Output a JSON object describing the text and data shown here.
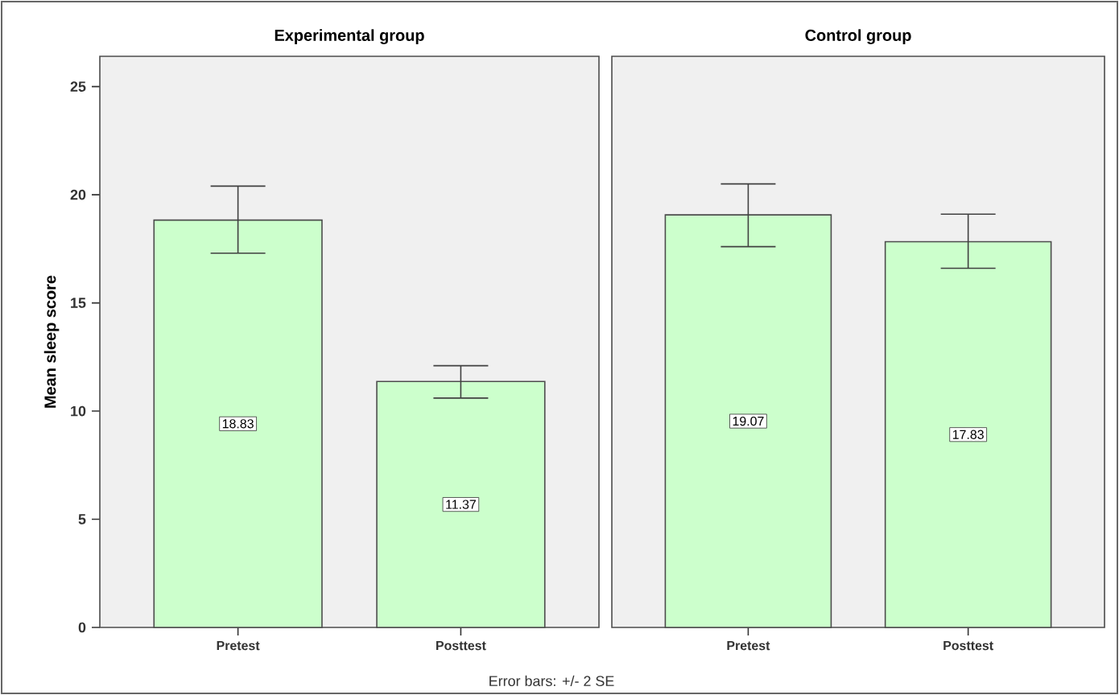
{
  "chart_data": [
    {
      "type": "bar",
      "title": "Experimental group",
      "ylabel": "Mean sleep score",
      "categories": [
        "Pretest",
        "Posttest"
      ],
      "values": [
        18.83,
        11.37
      ],
      "errors": [
        [
          17.3,
          20.4
        ],
        [
          10.6,
          12.1
        ]
      ],
      "color": "#ccffcc",
      "ylim": [
        0,
        26.4
      ],
      "yticks": [
        0,
        5,
        10,
        15,
        20,
        25
      ],
      "data_labels": true,
      "annotations": [
        "Error bars: +/- 2 SE"
      ]
    },
    {
      "type": "bar",
      "title": "Control group",
      "categories": [
        "Pretest",
        "Posttest"
      ],
      "values": [
        19.07,
        17.83
      ],
      "errors": [
        [
          17.6,
          20.5
        ],
        [
          16.6,
          19.1
        ]
      ],
      "color": "#ccffcc",
      "ylim": [
        0,
        26.4
      ],
      "tick_labels": "x",
      "data_labels": true
    }
  ]
}
